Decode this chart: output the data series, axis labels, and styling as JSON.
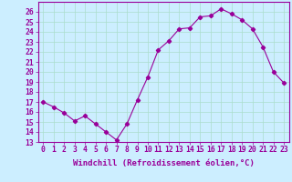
{
  "x": [
    0,
    1,
    2,
    3,
    4,
    5,
    6,
    7,
    8,
    9,
    10,
    11,
    12,
    13,
    14,
    15,
    16,
    17,
    18,
    19,
    20,
    21,
    22,
    23
  ],
  "y": [
    17.0,
    16.5,
    15.9,
    15.1,
    15.6,
    14.8,
    14.0,
    13.2,
    14.8,
    17.2,
    19.5,
    22.2,
    23.1,
    24.3,
    24.4,
    25.5,
    25.6,
    26.3,
    25.8,
    25.2,
    24.3,
    22.5,
    20.0,
    18.9
  ],
  "line_color": "#990099",
  "marker": "D",
  "marker_size": 2.2,
  "bg_color": "#cceeff",
  "grid_color": "#aaddcc",
  "xlabel": "Windchill (Refroidissement éolien,°C)",
  "xlim": [
    -0.5,
    23.5
  ],
  "ylim": [
    13,
    27
  ],
  "yticks": [
    13,
    14,
    15,
    16,
    17,
    18,
    19,
    20,
    21,
    22,
    23,
    24,
    25,
    26
  ],
  "xticks": [
    0,
    1,
    2,
    3,
    4,
    5,
    6,
    7,
    8,
    9,
    10,
    11,
    12,
    13,
    14,
    15,
    16,
    17,
    18,
    19,
    20,
    21,
    22,
    23
  ],
  "tick_label_color": "#990099",
  "axis_label_color": "#990099",
  "spine_color": "#990099",
  "xlabel_fontsize": 6.5,
  "tick_fontsize": 5.8
}
